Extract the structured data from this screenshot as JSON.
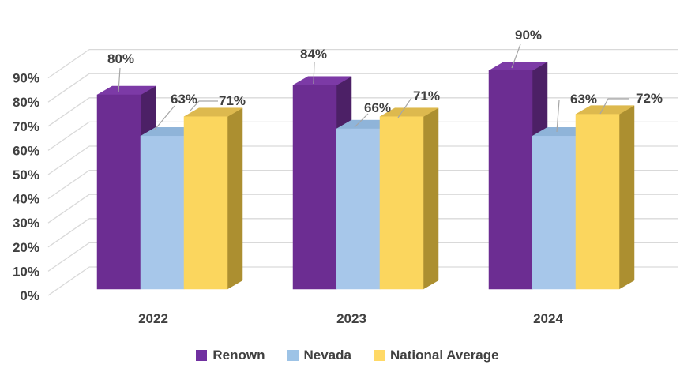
{
  "chart_data": {
    "type": "bar",
    "variant": "3d-clustered-column",
    "title": "",
    "categories": [
      "2022",
      "2023",
      "2024"
    ],
    "series": [
      {
        "name": "Renown",
        "values": [
          80,
          84,
          90
        ],
        "color": "#6C2D92",
        "color_top": "#7C3AA6",
        "color_side": "#4C2066",
        "legend_color": "#7030A0"
      },
      {
        "name": "Nevada",
        "values": [
          63,
          66,
          63
        ],
        "color": "#A7C7EA",
        "color_top": "#8FB4D9",
        "color_side": "#97BCE0",
        "legend_color": "#9DC3E6"
      },
      {
        "name": "National Average",
        "values": [
          71,
          71,
          72
        ],
        "color": "#FBD65E",
        "color_top": "#DDB94E",
        "color_side": "#AC8F30",
        "legend_color": "#FFD966"
      }
    ],
    "data_labels": [
      [
        "80%",
        "63%",
        "71%"
      ],
      [
        "84%",
        "66%",
        "71%"
      ],
      [
        "90%",
        "63%",
        "72%"
      ]
    ],
    "y_axis": {
      "min": 0,
      "max": 90,
      "step": 10,
      "ticks": [
        "0%",
        "10%",
        "20%",
        "30%",
        "40%",
        "50%",
        "60%",
        "70%",
        "80%",
        "90%"
      ]
    },
    "grid": true,
    "legend_position": "bottom",
    "colors": {
      "text": "#404040",
      "gridline": "#D9D9D9",
      "leader_line": "#A6A6A6",
      "background": "#FFFFFF"
    }
  }
}
